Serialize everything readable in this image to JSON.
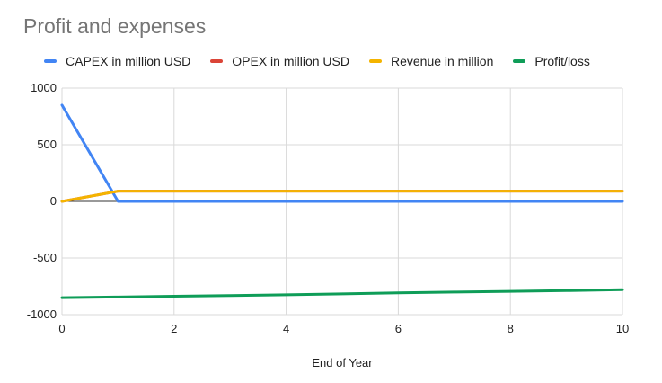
{
  "chart_data": {
    "type": "line",
    "title": "Profit and expenses",
    "xlabel": "End of Year",
    "ylabel": "",
    "xlim": [
      0,
      10
    ],
    "ylim": [
      -1000,
      1000
    ],
    "x_ticks": [
      0,
      2,
      4,
      6,
      8,
      10
    ],
    "y_ticks": [
      1000,
      500,
      0,
      -500,
      -1000
    ],
    "grid": true,
    "legend_position": "top",
    "series": [
      {
        "name": "CAPEX in million USD",
        "color": "#4285F4",
        "x": [
          0,
          1,
          2,
          3,
          4,
          5,
          6,
          7,
          8,
          9,
          10
        ],
        "values": [
          850,
          0,
          0,
          0,
          0,
          0,
          0,
          0,
          0,
          0,
          0
        ]
      },
      {
        "name": "OPEX in million USD",
        "color": "#DB4437",
        "x": [
          0,
          1,
          2,
          3,
          4,
          5,
          6,
          7,
          8,
          9,
          10
        ],
        "values": [
          0,
          90,
          90,
          90,
          90,
          90,
          90,
          90,
          90,
          90,
          90
        ]
      },
      {
        "name": "Revenue in million",
        "color": "#F4B400",
        "x": [
          0,
          1,
          2,
          3,
          4,
          5,
          6,
          7,
          8,
          9,
          10
        ],
        "values": [
          0,
          90,
          90,
          90,
          90,
          90,
          90,
          90,
          90,
          90,
          90
        ]
      },
      {
        "name": "Profit/loss",
        "color": "#0F9D58",
        "x": [
          0,
          1,
          2,
          3,
          4,
          5,
          6,
          7,
          8,
          9,
          10
        ],
        "values": [
          -850,
          -844,
          -837,
          -831,
          -824,
          -816,
          -808,
          -801,
          -795,
          -788,
          -780
        ]
      }
    ]
  }
}
